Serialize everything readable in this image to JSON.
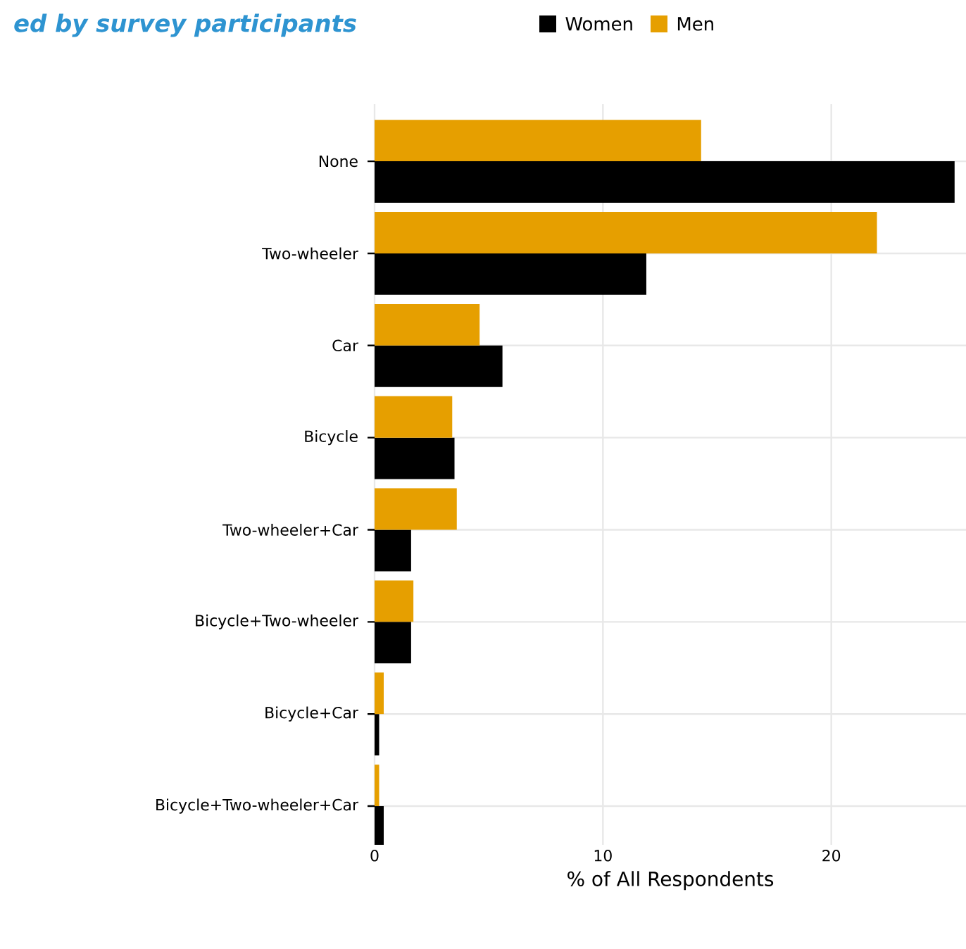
{
  "chart_data": {
    "type": "bar",
    "orientation": "horizontal",
    "title": "ed by survey participants",
    "xlabel": "% of All Respondents",
    "categories": [
      "None",
      "Two-wheeler",
      "Car",
      "Bicycle",
      "Two-wheeler+Car",
      "Bicycle+Two-wheeler",
      "Bicycle+Car",
      "Bicycle+Two-wheeler+Car"
    ],
    "series": [
      {
        "name": "Women",
        "color": "#000000",
        "values": [
          25.4,
          11.9,
          5.6,
          3.5,
          1.6,
          1.6,
          0.2,
          0.4
        ]
      },
      {
        "name": "Men",
        "color": "#e69f00",
        "values": [
          14.3,
          22.0,
          4.6,
          3.4,
          3.6,
          1.7,
          0.4,
          0.2
        ]
      }
    ],
    "xlim": [
      0,
      25.9
    ],
    "xticks": [
      0,
      10,
      20
    ],
    "grid": true,
    "legend": "top"
  }
}
